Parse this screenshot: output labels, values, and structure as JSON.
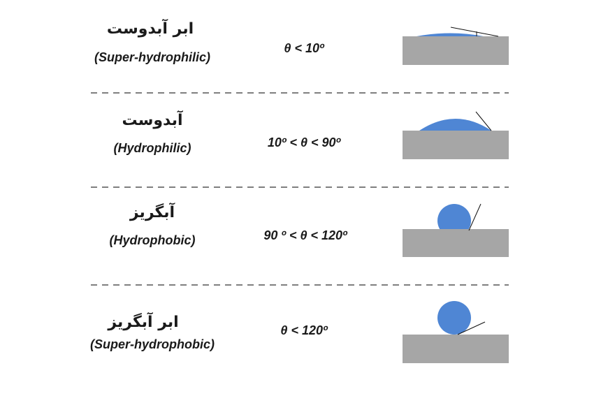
{
  "rows": [
    {
      "persian": "ابر آبدوست",
      "english": "(Super-hydrophilic)",
      "angle": "θ < 10º"
    },
    {
      "persian": "آبدوست",
      "english": "(Hydrophilic)",
      "angle": "10º < θ < 90º"
    },
    {
      "persian": "آبگریز",
      "english": "(Hydrophobic)",
      "angle": "90 º <  θ < 120º"
    },
    {
      "persian": "ابر آبگریز",
      "english": "(Super-hydrophobic)",
      "angle": "θ < 120º"
    }
  ]
}
